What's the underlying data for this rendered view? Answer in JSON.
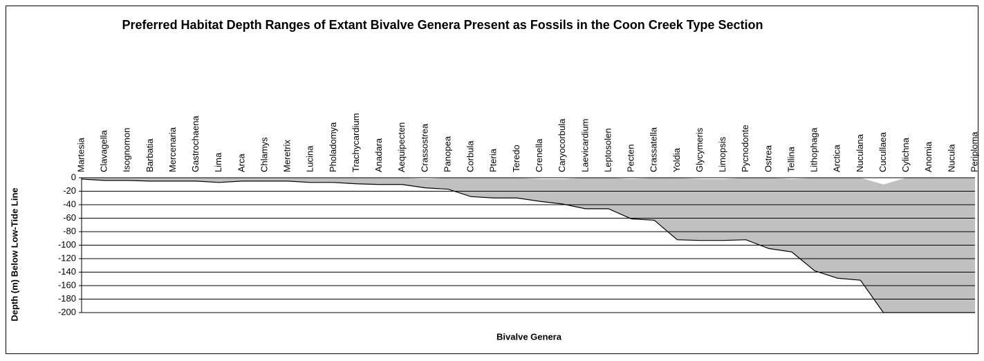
{
  "chart_data": {
    "type": "area",
    "title": "Preferred Habitat Depth Ranges of Extant Bivalve Genera Present as Fossils in the Coon Creek Type Section",
    "x_label": "Bivalve Genera",
    "y_label": "Depth (m) Below Low-Tide Line",
    "categories": [
      "Martesia",
      "Clavagella",
      "Isognomon",
      "Barbatia",
      "Mercenaria",
      "Gastrochaena",
      "Lima",
      "Arca",
      "Chlamys",
      "Meretrix",
      "Lucina",
      "Pholadomya",
      "Trachycardium",
      "Anadara",
      "Aequipecten",
      "Crassostrea",
      "Panopea",
      "Corbula",
      "Pteria",
      "Teredo",
      "Crenella",
      "Caryocorbula",
      "Laevicardium",
      "Leptosolen",
      "Pecten",
      "Crassatella",
      "Yoldia",
      "Glycymeris",
      "Limopsis",
      "Pycnodonte",
      "Ostrea",
      "Tellina",
      "Lithophaga",
      "Arctica",
      "Nuculana",
      "Cucullaea",
      "Cylichna",
      "Anomia",
      "Nucula",
      "Periploma"
    ],
    "series": [
      {
        "color": "#ffffff",
        "values": [
          0,
          0,
          0,
          0,
          0,
          0,
          0,
          0,
          0,
          0,
          0,
          0,
          0,
          0,
          0,
          -2,
          0,
          0,
          0,
          0,
          -2,
          -2,
          0,
          0,
          -2,
          0,
          0,
          -2,
          -2,
          0,
          0,
          -2,
          0,
          0,
          0,
          -10,
          0,
          0,
          0,
          0
        ]
      },
      {
        "color": "#c0c0c0",
        "values": [
          -2,
          -4,
          -4,
          -5,
          -5,
          -5,
          -7,
          -5,
          -5,
          -5,
          -7,
          -7,
          -9,
          -10,
          -10,
          -15,
          -17,
          -28,
          -30,
          -30,
          -35,
          -39,
          -46,
          -46,
          -61,
          -63,
          -92,
          -93,
          -93,
          -92,
          -105,
          -110,
          -138,
          -149,
          -152,
          -200,
          -200,
          -200,
          -200,
          -200
        ]
      }
    ],
    "ylim": [
      -200,
      0
    ],
    "yticks": [
      0,
      -20,
      -40,
      -60,
      -80,
      -100,
      -120,
      -140,
      -160,
      -180,
      -200
    ],
    "grid": true
  }
}
